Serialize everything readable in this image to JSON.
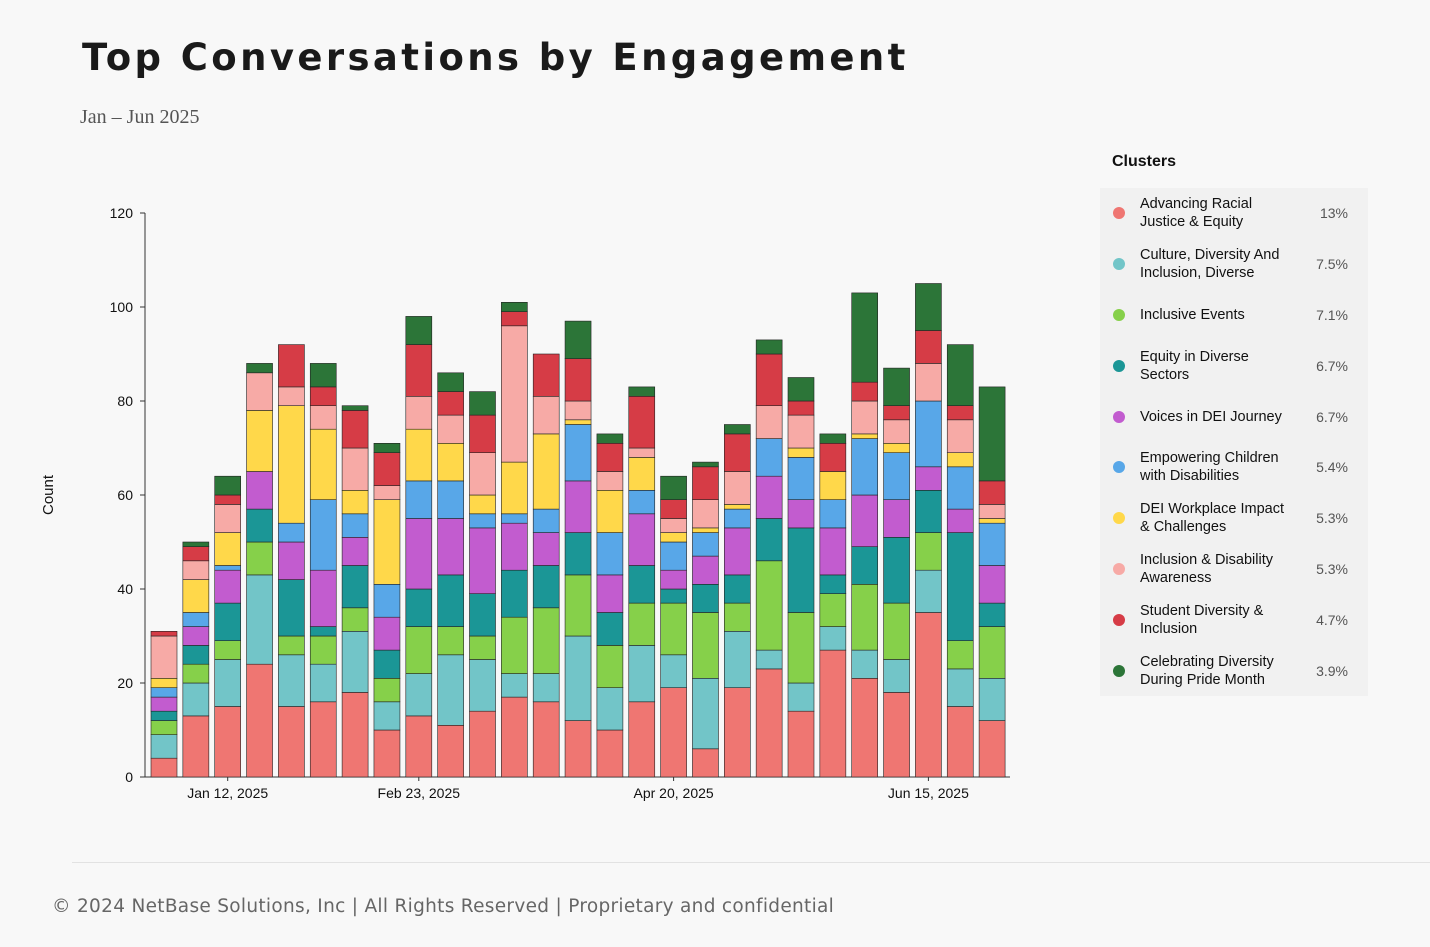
{
  "chart_data": {
    "type": "bar",
    "stacked": true,
    "title": "Top Conversations by Engagement",
    "subtitle": "Jan – Jun 2025",
    "ylabel": "Count",
    "ylim": [
      0,
      120
    ],
    "yticks": [
      0,
      20,
      40,
      60,
      80,
      100,
      120
    ],
    "xtick_labels": [
      {
        "index": 2,
        "label": "Jan 12, 2025"
      },
      {
        "index": 8,
        "label": "Feb 23, 2025"
      },
      {
        "index": 16,
        "label": "Apr 20, 2025"
      },
      {
        "index": 24,
        "label": "Jun 15, 2025"
      }
    ],
    "legend_title": "Clusters",
    "series": [
      {
        "name": "Advancing Racial Justice & Equity",
        "share": "13%",
        "color": "#ef7672",
        "values": [
          4,
          13,
          15,
          24,
          15,
          16,
          18,
          10,
          13,
          11,
          14,
          17,
          16,
          12,
          10,
          16,
          19,
          6,
          19,
          23,
          14,
          27,
          21,
          18,
          35,
          15,
          12
        ]
      },
      {
        "name": "Culture, Diversity And Inclusion, Diverse",
        "share": "7.5%",
        "color": "#72c5c8",
        "values": [
          5,
          7,
          10,
          19,
          11,
          8,
          13,
          6,
          9,
          15,
          11,
          5,
          6,
          18,
          9,
          12,
          7,
          15,
          12,
          4,
          6,
          5,
          6,
          7,
          9,
          8,
          9
        ]
      },
      {
        "name": "Inclusive Events",
        "share": "7.1%",
        "color": "#86d04a",
        "values": [
          3,
          4,
          4,
          7,
          4,
          6,
          5,
          5,
          10,
          6,
          5,
          12,
          14,
          13,
          9,
          9,
          11,
          14,
          6,
          19,
          15,
          7,
          14,
          12,
          8,
          6,
          11
        ]
      },
      {
        "name": "Equity in Diverse Sectors",
        "share": "6.7%",
        "color": "#1b9696",
        "values": [
          2,
          4,
          8,
          7,
          12,
          2,
          9,
          6,
          8,
          11,
          9,
          10,
          9,
          9,
          7,
          8,
          3,
          6,
          6,
          9,
          18,
          4,
          8,
          14,
          9,
          23,
          5
        ]
      },
      {
        "name": "Voices in DEI Journey",
        "share": "6.7%",
        "color": "#c25ccf",
        "values": [
          3,
          4,
          7,
          8,
          8,
          12,
          6,
          7,
          15,
          12,
          14,
          10,
          7,
          11,
          8,
          11,
          4,
          6,
          10,
          9,
          6,
          10,
          11,
          8,
          5,
          5,
          8
        ]
      },
      {
        "name": "Empowering Children with Disabilities",
        "share": "5.4%",
        "color": "#58a7e8",
        "values": [
          2,
          3,
          1,
          0,
          4,
          15,
          5,
          7,
          8,
          8,
          3,
          2,
          5,
          12,
          9,
          5,
          6,
          5,
          4,
          8,
          9,
          6,
          12,
          10,
          14,
          9,
          9
        ]
      },
      {
        "name": "DEI Workplace Impact & Challenges",
        "share": "5.3%",
        "color": "#ffd84a",
        "values": [
          2,
          7,
          7,
          13,
          25,
          15,
          5,
          18,
          11,
          8,
          4,
          11,
          16,
          1,
          9,
          7,
          2,
          1,
          1,
          0,
          2,
          6,
          1,
          2,
          0,
          3,
          1
        ]
      },
      {
        "name": "Inclusion & Disability Awareness",
        "share": "5.3%",
        "color": "#f7aaa6",
        "values": [
          9,
          4,
          6,
          8,
          4,
          5,
          9,
          3,
          7,
          6,
          9,
          29,
          8,
          4,
          4,
          2,
          3,
          6,
          7,
          7,
          7,
          0,
          7,
          5,
          8,
          7,
          3
        ]
      },
      {
        "name": "Student Diversity & Inclusion",
        "share": "4.7%",
        "color": "#d63c46",
        "values": [
          1,
          3,
          2,
          0,
          9,
          4,
          8,
          7,
          11,
          5,
          8,
          3,
          9,
          9,
          6,
          11,
          4,
          7,
          8,
          11,
          3,
          6,
          4,
          3,
          7,
          3,
          5
        ]
      },
      {
        "name": "Celebrating Diversity During Pride Month",
        "share": "3.9%",
        "color": "#2c7538",
        "values": [
          0,
          1,
          4,
          2,
          0,
          5,
          1,
          2,
          6,
          4,
          5,
          2,
          0,
          8,
          2,
          2,
          5,
          1,
          2,
          3,
          5,
          2,
          19,
          8,
          10,
          13,
          20
        ]
      }
    ]
  },
  "footer": {
    "text": "© 2024 NetBase Solutions, Inc | All Rights Reserved | Proprietary and confidential"
  }
}
